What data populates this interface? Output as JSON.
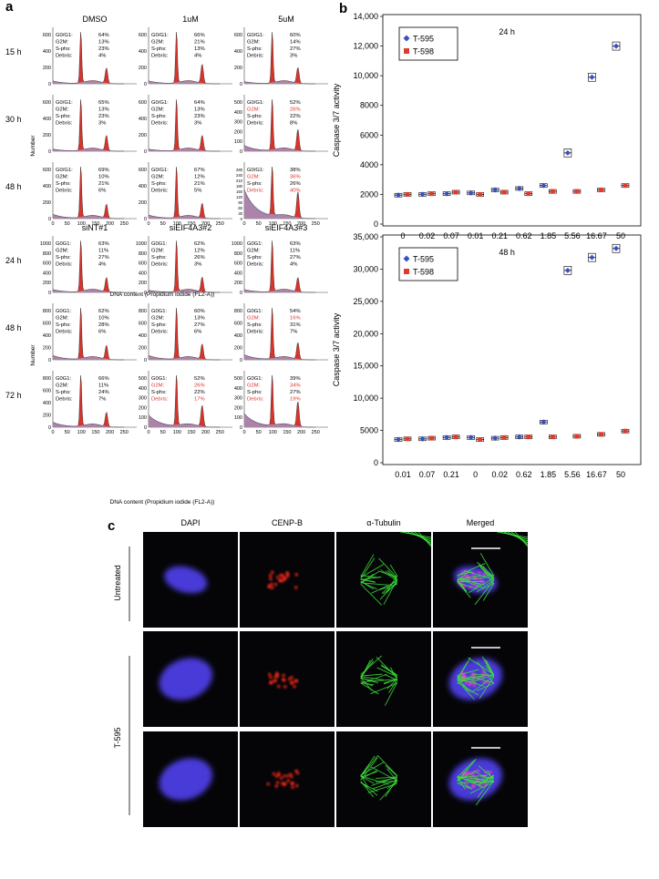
{
  "panel_a": {
    "letter": "a",
    "x_axis_label": "DNA content (Propidium iodide (FL2-A))",
    "y_axis_label": "Number",
    "x_ticks": [
      "0",
      "50",
      "100",
      "150",
      "200",
      "250"
    ],
    "top": {
      "columns": [
        "DMSO",
        "1uM",
        "5uM"
      ],
      "rows": [
        "15 h",
        "30 h",
        "48 h"
      ],
      "cells": [
        [
          {
            "ticks": [
              "0",
              "200",
              "400",
              "600"
            ],
            "labels": [
              "G0/G1:",
              "G2M:",
              "S-phs:",
              "Debris:"
            ],
            "values": [
              "64%",
              "13%",
              "23%",
              "4%"
            ],
            "red": [
              false,
              false,
              false,
              false
            ]
          },
          {
            "ticks": [
              "0",
              "200",
              "400",
              "600"
            ],
            "labels": [
              "G0/G1:",
              "G2M:",
              "S-phs:",
              "Debris:"
            ],
            "values": [
              "66%",
              "21%",
              "13%",
              "4%"
            ],
            "red": [
              false,
              false,
              false,
              false
            ]
          },
          {
            "ticks": [
              "0",
              "200",
              "400",
              "600"
            ],
            "labels": [
              "G0/G1:",
              "G2M:",
              "S-phs:",
              "Debris:"
            ],
            "values": [
              "60%",
              "14%",
              "27%",
              "3%"
            ],
            "red": [
              false,
              false,
              false,
              false
            ]
          }
        ],
        [
          {
            "ticks": [
              "0",
              "200",
              "400",
              "600"
            ],
            "labels": [
              "G0/G1:",
              "G2M:",
              "S-phs:",
              "Debris:"
            ],
            "values": [
              "65%",
              "13%",
              "23%",
              "3%"
            ],
            "red": [
              false,
              false,
              false,
              false
            ]
          },
          {
            "ticks": [
              "0",
              "200",
              "400",
              "600"
            ],
            "labels": [
              "G0/G1:",
              "G2M:",
              "S-phs:",
              "Debris:"
            ],
            "values": [
              "64%",
              "13%",
              "23%",
              "3%"
            ],
            "red": [
              false,
              false,
              false,
              false
            ]
          },
          {
            "ticks": [
              "0",
              "100",
              "200",
              "300",
              "400",
              "500"
            ],
            "labels": [
              "G0/G1:",
              "G2M:",
              "S-phs:",
              "Debris:"
            ],
            "values": [
              "52%",
              "26%",
              "22%",
              "8%"
            ],
            "red": [
              false,
              true,
              false,
              false
            ]
          }
        ],
        [
          {
            "ticks": [
              "0",
              "200",
              "400",
              "600"
            ],
            "labels": [
              "G0/G1:",
              "G2M:",
              "S-phs:",
              "Debris:"
            ],
            "values": [
              "69%",
              "10%",
              "21%",
              "6%"
            ],
            "red": [
              false,
              false,
              false,
              false
            ]
          },
          {
            "ticks": [
              "0",
              "200",
              "400",
              "600"
            ],
            "labels": [
              "G0/G1:",
              "G2M:",
              "S-phs:",
              "Debris:"
            ],
            "values": [
              "67%",
              "12%",
              "21%",
              "5%"
            ],
            "red": [
              false,
              false,
              false,
              false
            ]
          },
          {
            "ticks": [
              "0",
              "30",
              "60",
              "90",
              "120",
              "150",
              "180",
              "210",
              "240",
              "280"
            ],
            "labels": [
              "G0/G1:",
              "G2M:",
              "S-phs:",
              "Debris:"
            ],
            "values": [
              "38%",
              "36%",
              "26%",
              "40%"
            ],
            "red": [
              false,
              true,
              false,
              true
            ]
          }
        ]
      ]
    },
    "bottom": {
      "columns": [
        "siNT#1",
        "siEIF4A3#2",
        "siEIF4A3#3"
      ],
      "rows": [
        "24 h",
        "48 h",
        "72 h"
      ],
      "cells": [
        [
          {
            "ticks": [
              "0",
              "200",
              "400",
              "600",
              "800",
              "1000"
            ],
            "labels": [
              "G0G1:",
              "G2M:",
              "S-phs:",
              "Debris:"
            ],
            "values": [
              "63%",
              "11%",
              "27%",
              "4%"
            ],
            "red": [
              false,
              false,
              false,
              false
            ]
          },
          {
            "ticks": [
              "0",
              "200",
              "400",
              "600",
              "800",
              "1000"
            ],
            "labels": [
              "G0G1:",
              "G2M:",
              "S-phs:",
              "Debris:"
            ],
            "values": [
              "62%",
              "12%",
              "26%",
              "3%"
            ],
            "red": [
              false,
              false,
              false,
              false
            ]
          },
          {
            "ticks": [
              "0",
              "200",
              "400",
              "600",
              "800",
              "1000"
            ],
            "labels": [
              "G0G1:",
              "G2M:",
              "S-phs:",
              "Debris:"
            ],
            "values": [
              "63%",
              "11%",
              "27%",
              "4%"
            ],
            "red": [
              false,
              false,
              false,
              false
            ]
          }
        ],
        [
          {
            "ticks": [
              "0",
              "200",
              "400",
              "600",
              "800"
            ],
            "labels": [
              "G0G1:",
              "G2M:",
              "S-phs:",
              "Debris:"
            ],
            "values": [
              "62%",
              "10%",
              "28%",
              "6%"
            ],
            "red": [
              false,
              false,
              false,
              false
            ]
          },
          {
            "ticks": [
              "0",
              "200",
              "400",
              "600",
              "800"
            ],
            "labels": [
              "G0G1:",
              "G2M:",
              "S-phs:",
              "Debris:"
            ],
            "values": [
              "60%",
              "13%",
              "27%",
              "6%"
            ],
            "red": [
              false,
              false,
              false,
              false
            ]
          },
          {
            "ticks": [
              "0",
              "200",
              "400",
              "600",
              "800"
            ],
            "labels": [
              "G0G1:",
              "G2M:",
              "S-phs:",
              "Debris:"
            ],
            "values": [
              "54%",
              "16%",
              "31%",
              "7%"
            ],
            "red": [
              false,
              true,
              false,
              false
            ]
          }
        ],
        [
          {
            "ticks": [
              "0",
              "200",
              "400",
              "600",
              "800"
            ],
            "labels": [
              "G0G1:",
              "G2M:",
              "S-phs:",
              "Debris:"
            ],
            "values": [
              "66%",
              "11%",
              "24%",
              "7%"
            ],
            "red": [
              false,
              false,
              false,
              false
            ]
          },
          {
            "ticks": [
              "0",
              "100",
              "200",
              "300",
              "400",
              "500"
            ],
            "labels": [
              "G0G1:",
              "G2M:",
              "S-phs:",
              "Debris:"
            ],
            "values": [
              "52%",
              "26%",
              "22%",
              "17%"
            ],
            "red": [
              false,
              true,
              false,
              true
            ]
          },
          {
            "ticks": [
              "0",
              "100",
              "200",
              "300",
              "400",
              "500"
            ],
            "labels": [
              "G0G1:",
              "G2M:",
              "S-phs:",
              "Debris:"
            ],
            "values": [
              "39%",
              "34%",
              "27%",
              "19%"
            ],
            "red": [
              false,
              true,
              false,
              true
            ]
          }
        ]
      ]
    }
  },
  "panel_b": {
    "letter": "b",
    "charts": [
      {
        "type": "scatter",
        "title": "24 h",
        "ylabel": "Caspase 3/7 activity",
        "ylim": [
          0,
          14000
        ],
        "yticks": [
          "0",
          "2000",
          "4000",
          "6000",
          "8000",
          "10,000",
          "12,000",
          "14,000"
        ],
        "categories": [
          "0",
          "0.02",
          "0.07",
          "0.01",
          "0.21",
          "0.62",
          "1.85",
          "5.56",
          "16.67",
          "50"
        ],
        "series": [
          {
            "name": "T-595",
            "values": [
              1950,
              2000,
              2050,
              2100,
              2300,
              2400,
              2600,
              4800,
              9900,
              12000
            ]
          },
          {
            "name": "T-598",
            "values": [
              2000,
              2050,
              2150,
              2000,
              2150,
              2050,
              2200,
              2200,
              2300,
              2600
            ]
          }
        ]
      },
      {
        "type": "scatter",
        "title": "48 h",
        "ylabel": "Caspase 3/7 activity",
        "ylim": [
          0,
          35000
        ],
        "yticks": [
          "0",
          "5000",
          "10,000",
          "15,000",
          "20,000",
          "25,000",
          "30,000",
          "35,000"
        ],
        "categories": [
          "0.01",
          "0.07",
          "0.21",
          "0",
          "0.02",
          "0.62",
          "1.85",
          "5.56",
          "16.67",
          "50"
        ],
        "series": [
          {
            "name": "T-595",
            "values": [
              3600,
              3700,
              3900,
              3900,
              3800,
              4000,
              6300,
              29800,
              31800,
              33200
            ]
          },
          {
            "name": "T-598",
            "values": [
              3700,
              3800,
              4000,
              3600,
              3900,
              4000,
              4000,
              4100,
              4400,
              4900
            ]
          }
        ]
      }
    ],
    "colors": {
      "T-595": "#3b4fc4",
      "T-598": "#e03a2a"
    }
  },
  "panel_c": {
    "letter": "c",
    "columns": [
      "DAPI",
      "CENP-B",
      "α-Tubulin",
      "Merged"
    ],
    "groups": [
      {
        "label": "Untreated",
        "rows": 1
      },
      {
        "label": "T-595",
        "rows": 2
      }
    ]
  }
}
